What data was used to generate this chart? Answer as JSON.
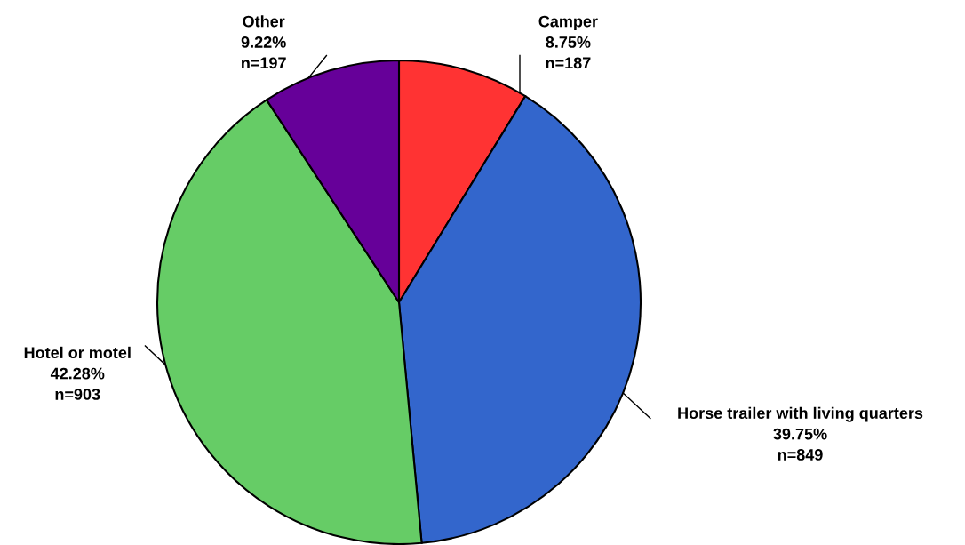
{
  "chart_data": {
    "type": "pie",
    "categories": [
      "Camper",
      "Horse trailer with living quarters",
      "Hotel or motel",
      "Other"
    ],
    "values": [
      187,
      849,
      903,
      197
    ],
    "value_labels": [
      "8.75%\nn=187",
      "39.75%\nn=849",
      "42.28%\nn=903",
      "9.22%\nn=197"
    ],
    "colors": [
      "#ff3333",
      "#3366cc",
      "#66cc66",
      "#660099"
    ]
  }
}
